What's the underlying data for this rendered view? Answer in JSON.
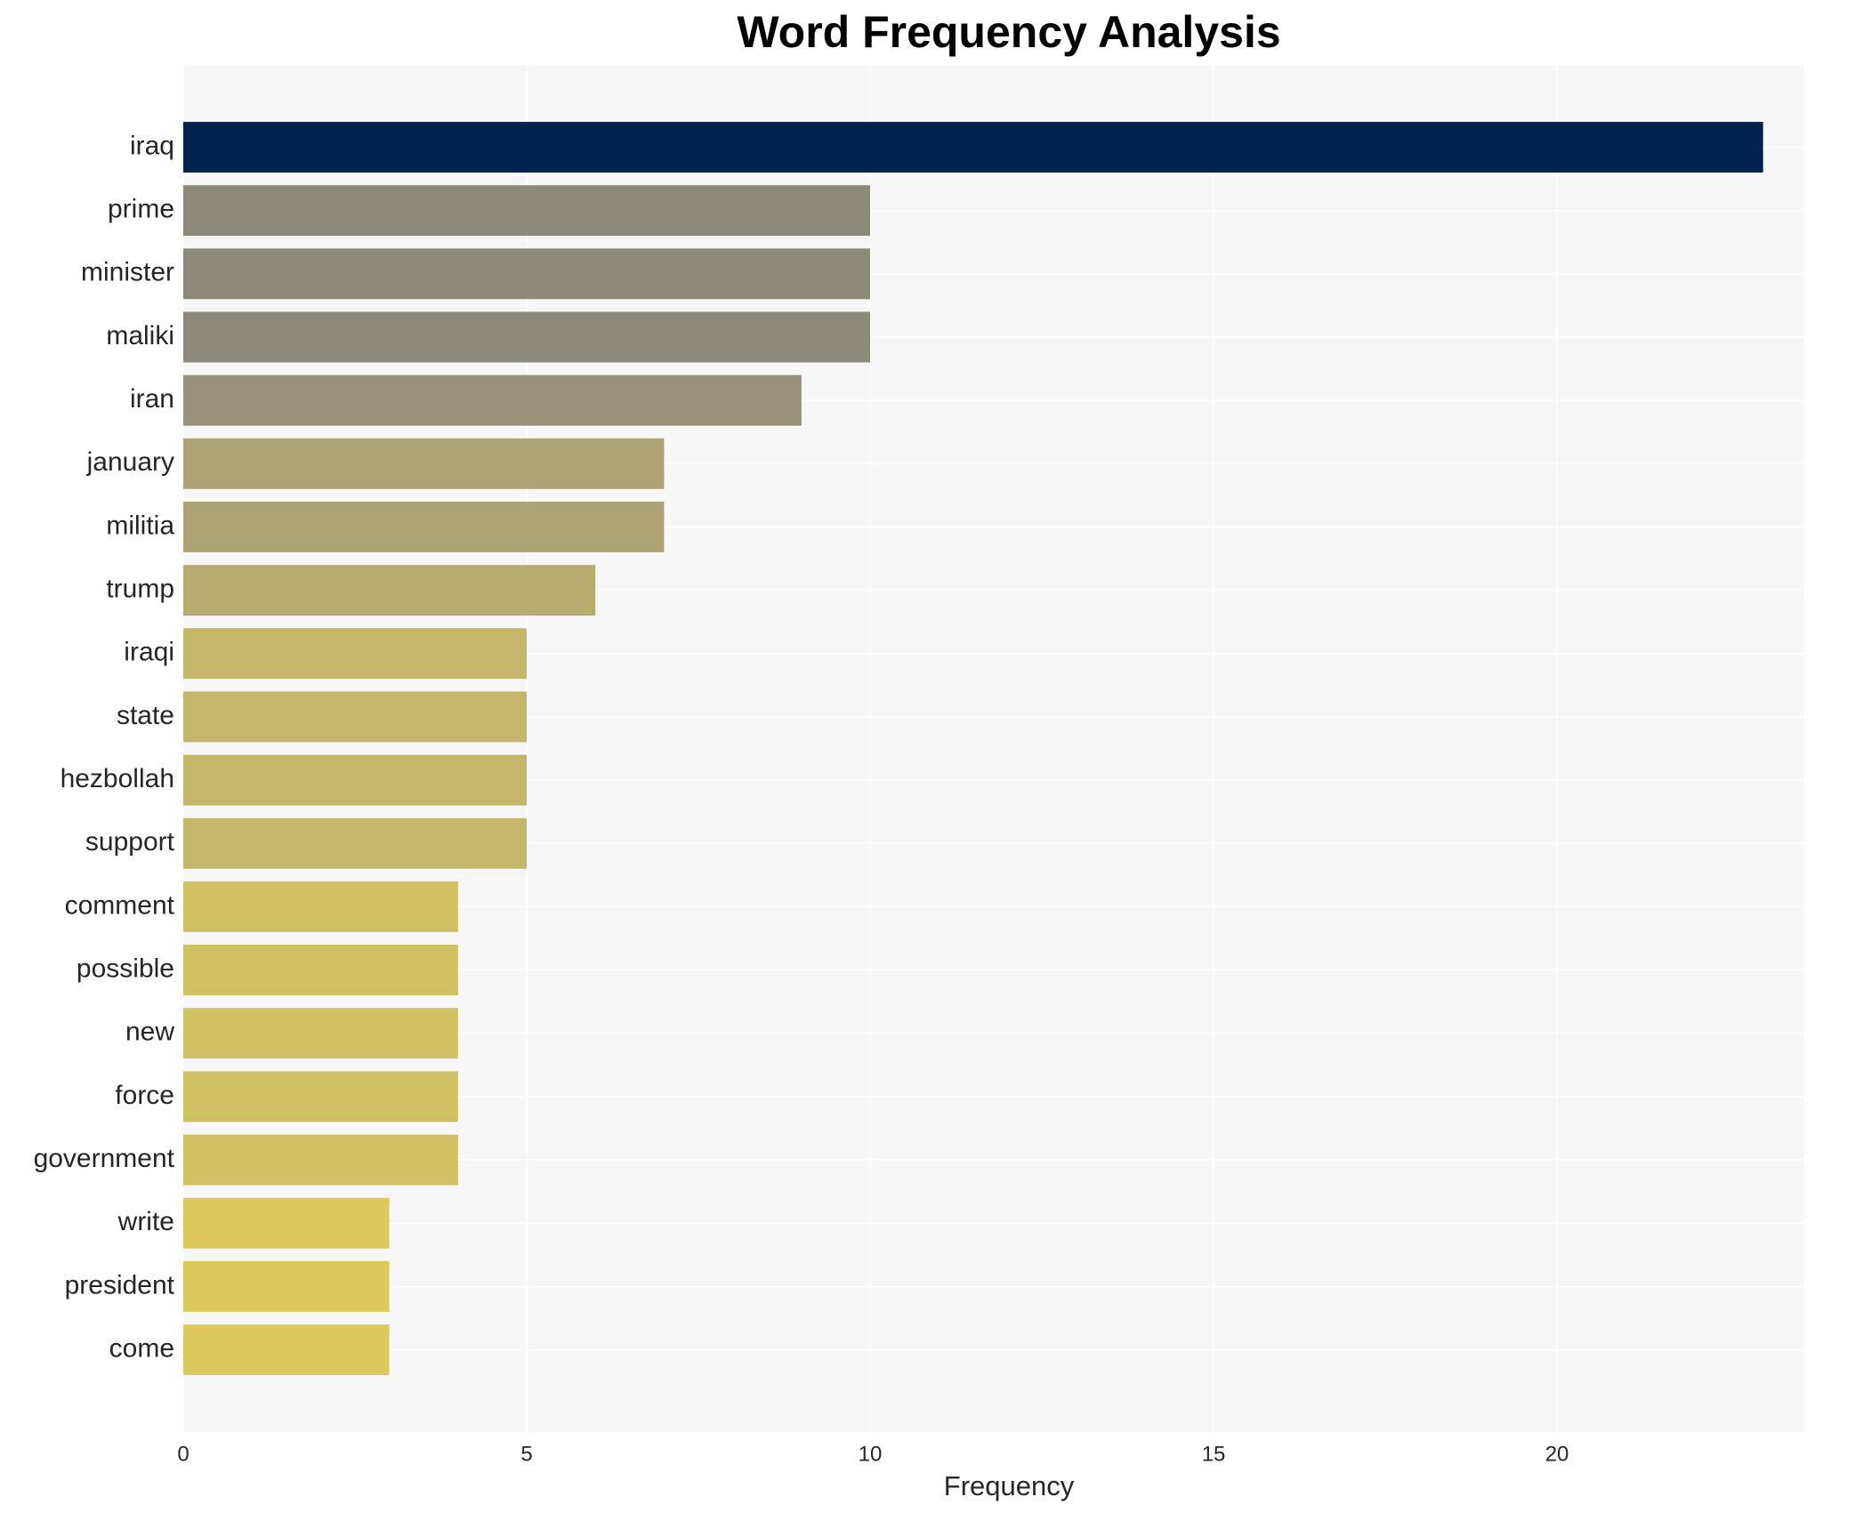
{
  "chart_data": {
    "type": "barh",
    "title": "Word Frequency Analysis",
    "x_label": "Frequency",
    "categories": [
      "iraq",
      "prime",
      "minister",
      "maliki",
      "iran",
      "january",
      "militia",
      "trump",
      "iraqi",
      "state",
      "hezbollah",
      "support",
      "comment",
      "possible",
      "new",
      "force",
      "government",
      "write",
      "president",
      "come"
    ],
    "values": [
      23,
      10,
      10,
      10,
      9,
      7,
      7,
      6,
      5,
      5,
      5,
      5,
      4,
      4,
      4,
      4,
      4,
      3,
      3,
      3
    ],
    "colors": [
      "#00224e",
      "#8c8a78",
      "#8c8a78",
      "#8c8a78",
      "#98917a",
      "#ada374",
      "#ada374",
      "#b8ab6e",
      "#c4b56b",
      "#c4b56b",
      "#c4b56b",
      "#c4b56b",
      "#d0c064",
      "#d0c064",
      "#d0c064",
      "#d0c064",
      "#d0c064",
      "#dcc85c",
      "#dcc85c",
      "#dcc85c"
    ],
    "xlim": [
      0,
      23.6
    ],
    "xticks": [
      0,
      5,
      10,
      15,
      20
    ],
    "grid": true
  }
}
